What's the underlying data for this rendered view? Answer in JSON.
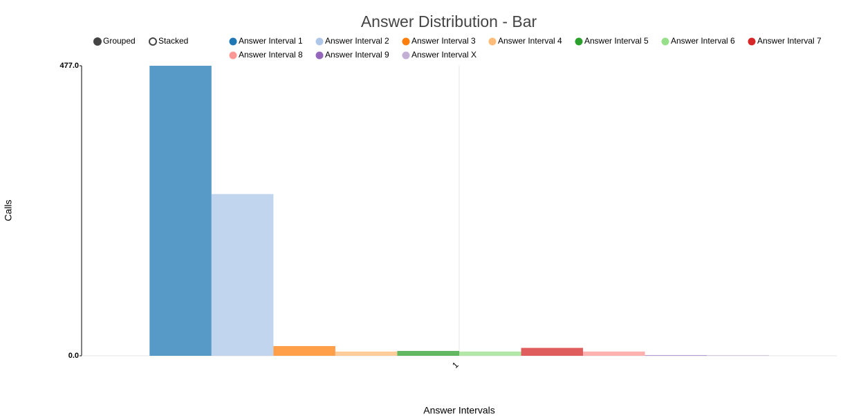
{
  "chart_data": {
    "type": "bar",
    "title": "Answer Distribution - Bar",
    "controls": [
      "Grouped",
      "Stacked"
    ],
    "x_label": "Answer Intervals",
    "y_label": "Calls",
    "categories": [
      "1"
    ],
    "series": [
      {
        "name": "Answer Interval 1",
        "color": "#1f77b4",
        "values": [
          477
        ]
      },
      {
        "name": "Answer Interval 2",
        "color": "#aec7e8",
        "values": [
          266
        ]
      },
      {
        "name": "Answer Interval 3",
        "color": "#ff7f0e",
        "values": [
          16
        ]
      },
      {
        "name": "Answer Interval 4",
        "color": "#ffbb78",
        "values": [
          7
        ]
      },
      {
        "name": "Answer Interval 5",
        "color": "#2ca02c",
        "values": [
          8
        ]
      },
      {
        "name": "Answer Interval 6",
        "color": "#98df8a",
        "values": [
          7
        ]
      },
      {
        "name": "Answer Interval 7",
        "color": "#d62728",
        "values": [
          13
        ]
      },
      {
        "name": "Answer Interval 8",
        "color": "#ff9896",
        "values": [
          7
        ]
      },
      {
        "name": "Answer Interval 9",
        "color": "#9467bd",
        "values": [
          1
        ]
      },
      {
        "name": "Answer Interval X",
        "color": "#c5b0d5",
        "values": [
          1
        ]
      }
    ],
    "ylim": [
      0,
      477
    ],
    "yticks": [
      {
        "value": 0,
        "label": "0.0"
      },
      {
        "value": 477,
        "label": "477.0"
      }
    ]
  }
}
